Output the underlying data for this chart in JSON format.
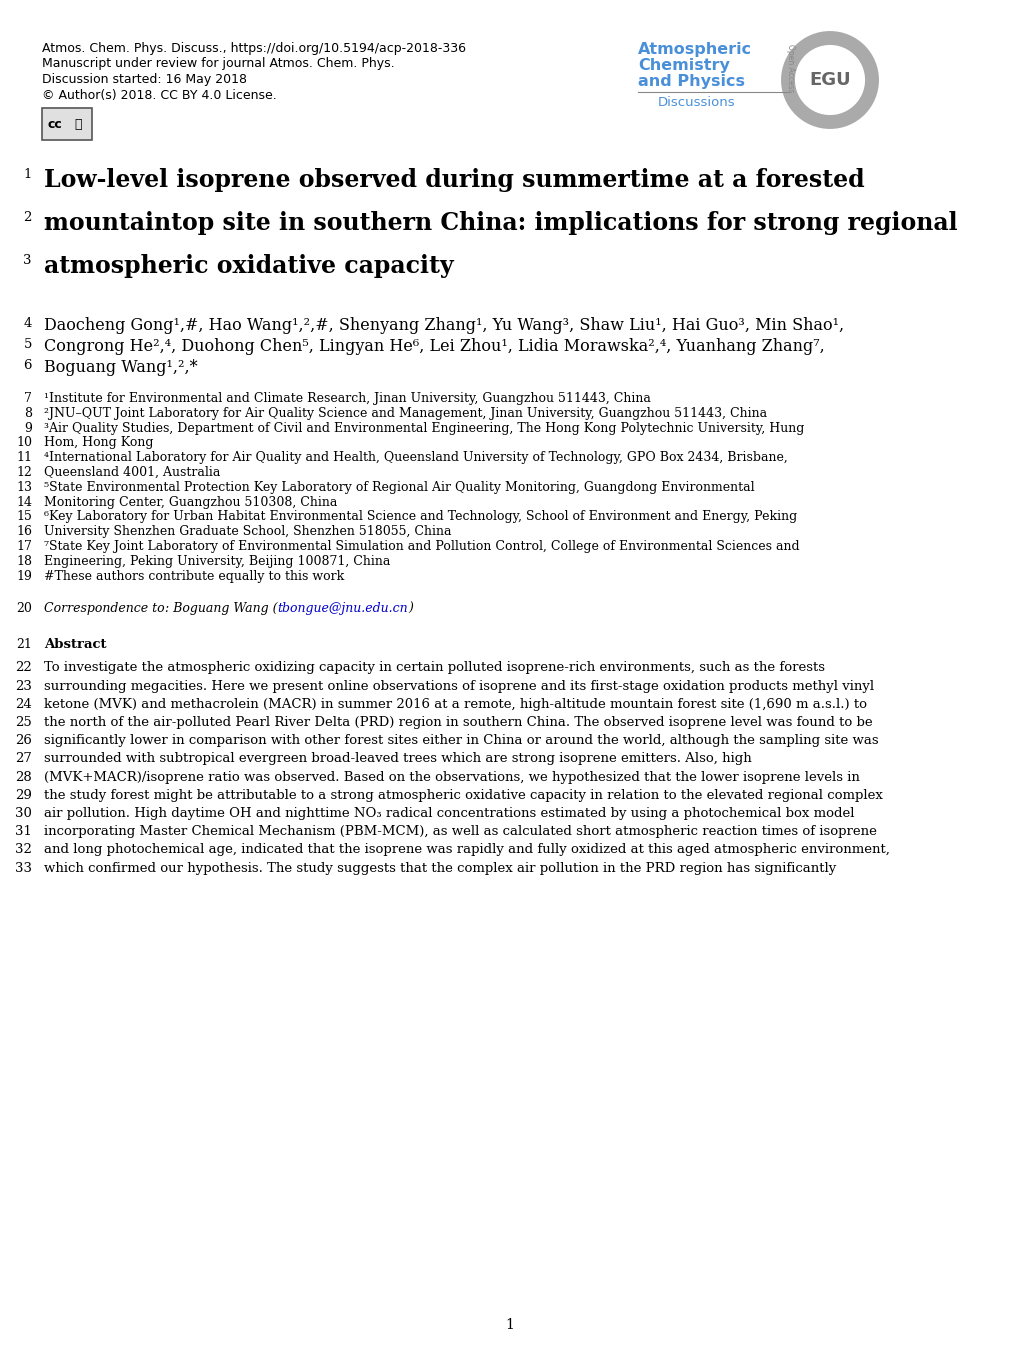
{
  "bg_color": "#ffffff",
  "header_left": [
    "Atmos. Chem. Phys. Discuss., https://doi.org/10.5194/acp-2018-336",
    "Manuscript under review for journal Atmos. Chem. Phys.",
    "Discussion started: 16 May 2018",
    "© Author(s) 2018. CC BY 4.0 License."
  ],
  "title_lines": [
    [
      "1",
      "Low-level isoprene observed during summertime at a forested"
    ],
    [
      "2",
      "mountaintop site in southern China: implications for strong regional"
    ],
    [
      "3",
      "atmospheric oxidative capacity"
    ]
  ],
  "authors_data": [
    [
      4,
      "Daocheng Gong¹,#, Hao Wang¹,²,#, Shenyang Zhang¹, Yu Wang³, Shaw Liu¹, Hai Guo³, Min Shao¹,"
    ],
    [
      5,
      "Congrong He²,⁴, Duohong Chen⁵, Lingyan He⁶, Lei Zhou¹, Lidia Morawska²,⁴, Yuanhang Zhang⁷,"
    ],
    [
      6,
      "Boguang Wang¹,²,*"
    ]
  ],
  "affiliations_data": [
    [
      7,
      "¹Institute for Environmental and Climate Research, Jinan University, Guangzhou 511443, China"
    ],
    [
      8,
      "²JNU–QUT Joint Laboratory for Air Quality Science and Management, Jinan University, Guangzhou 511443, China"
    ],
    [
      9,
      "³Air Quality Studies, Department of Civil and Environmental Engineering, The Hong Kong Polytechnic University, Hung"
    ],
    [
      10,
      "Hom, Hong Kong"
    ],
    [
      11,
      "⁴International Laboratory for Air Quality and Health, Queensland University of Technology, GPO Box 2434, Brisbane,"
    ],
    [
      12,
      "Queensland 4001, Australia"
    ],
    [
      13,
      "⁵State Environmental Protection Key Laboratory of Regional Air Quality Monitoring, Guangdong Environmental"
    ],
    [
      14,
      "Monitoring Center, Guangzhou 510308, China"
    ],
    [
      15,
      "⁶Key Laboratory for Urban Habitat Environmental Science and Technology, School of Environment and Energy, Peking"
    ],
    [
      16,
      "University Shenzhen Graduate School, Shenzhen 518055, China"
    ],
    [
      17,
      "⁷State Key Joint Laboratory of Environmental Simulation and Pollution Control, College of Environmental Sciences and"
    ],
    [
      18,
      "Engineering, Peking University, Beijing 100871, China"
    ],
    [
      19,
      "#These authors contribute equally to this work"
    ]
  ],
  "abstract_lines": [
    [
      22,
      "To investigate the atmospheric oxidizing capacity in certain polluted isoprene-rich environments, such as the forests"
    ],
    [
      23,
      "surrounding megacities. Here we present online observations of isoprene and its first-stage oxidation products methyl vinyl"
    ],
    [
      24,
      "ketone (MVK) and methacrolein (MACR) in summer 2016 at a remote, high-altitude mountain forest site (1,690 m a.s.l.) to"
    ],
    [
      25,
      "the north of the air-polluted Pearl River Delta (PRD) region in southern China. The observed isoprene level was found to be"
    ],
    [
      26,
      "significantly lower in comparison with other forest sites either in China or around the world, although the sampling site was"
    ],
    [
      27,
      "surrounded with subtropical evergreen broad-leaved trees which are strong isoprene emitters. Also, high"
    ],
    [
      28,
      "(MVK+MACR)/isoprene ratio was observed. Based on the observations, we hypothesized that the lower isoprene levels in"
    ],
    [
      29,
      "the study forest might be attributable to a strong atmospheric oxidative capacity in relation to the elevated regional complex"
    ],
    [
      30,
      "air pollution. High daytime OH and nighttime NO₃ radical concentrations estimated by using a photochemical box model"
    ],
    [
      31,
      "incorporating Master Chemical Mechanism (PBM-MCM), as well as calculated short atmospheric reaction times of isoprene"
    ],
    [
      32,
      "and long photochemical age, indicated that the isoprene was rapidly and fully oxidized at this aged atmospheric environment,"
    ],
    [
      33,
      "which confirmed our hypothesis. The study suggests that the complex air pollution in the PRD region has significantly"
    ]
  ],
  "egu_text_color": "#4a90d9",
  "link_color": "#0000cc",
  "page_number": "1"
}
